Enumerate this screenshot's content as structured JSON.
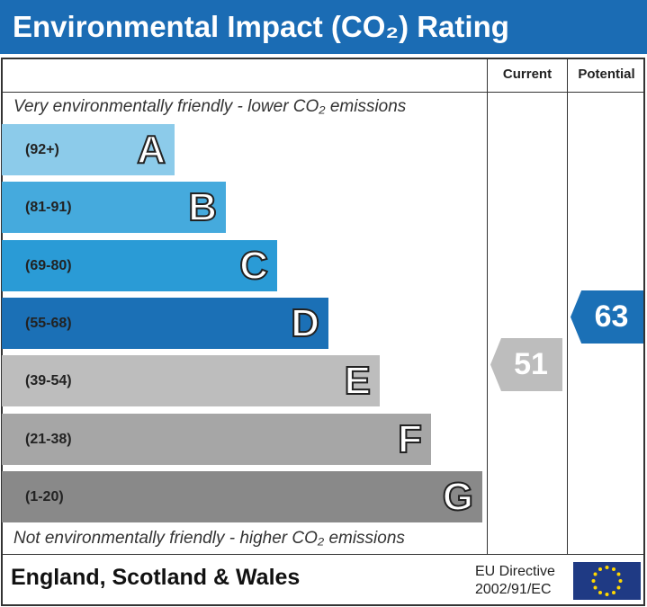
{
  "title": "Environmental Impact (CO₂) Rating",
  "columns": {
    "current": "Current",
    "potential": "Potential"
  },
  "top_note": "Very environmentally friendly - lower CO₂ emissions",
  "bottom_note": "Not environmentally friendly - higher CO₂ emissions",
  "footer": {
    "region": "England, Scotland & Wales",
    "directive_line1": "EU Directive",
    "directive_line2": "2002/91/EC",
    "flag_icon": "eu-flag-icon"
  },
  "chart_data": {
    "type": "bar",
    "bands": [
      {
        "letter": "A",
        "range": "(92+)",
        "color": "#8ccbea"
      },
      {
        "letter": "B",
        "range": "(81-91)",
        "color": "#45aadd"
      },
      {
        "letter": "C",
        "range": "(69-80)",
        "color": "#2a9bd6"
      },
      {
        "letter": "D",
        "range": "(55-68)",
        "color": "#1b70b6"
      },
      {
        "letter": "E",
        "range": "(39-54)",
        "color": "#bdbdbd"
      },
      {
        "letter": "F",
        "range": "(21-38)",
        "color": "#a6a6a6"
      },
      {
        "letter": "G",
        "range": "(1-20)",
        "color": "#898989"
      }
    ],
    "current": {
      "value": "51",
      "band": "E",
      "color": "#bdbdbd"
    },
    "potential": {
      "value": "63",
      "band": "D",
      "color": "#1b70b6"
    }
  }
}
